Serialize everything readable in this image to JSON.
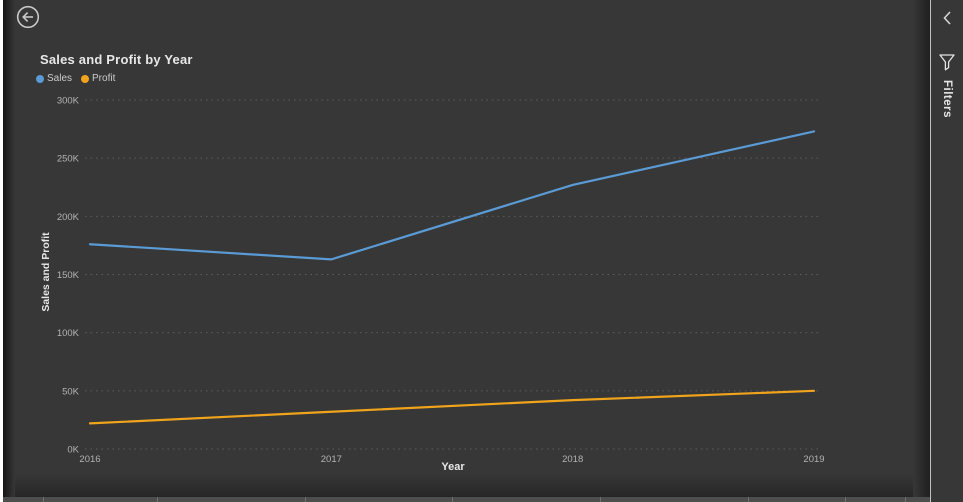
{
  "header": {
    "back_button_icon": "arrow-left-circle"
  },
  "filters_panel": {
    "title": "Filters",
    "collapse_icon": "chevron-left",
    "filter_icon": "funnel"
  },
  "colors": {
    "canvas_background": "#373737",
    "pane_divider": "#c2c2c2",
    "grid_line": "#5e5e5e",
    "tick_text": "#b3b3b3",
    "title_text": "#e8e8e8"
  },
  "chart_data": {
    "type": "line",
    "title": "Sales and Profit by Year",
    "xlabel": "Year",
    "ylabel": "Sales and Profit",
    "categories": [
      "2016",
      "2017",
      "2018",
      "2019"
    ],
    "series": [
      {
        "name": "Sales",
        "color": "#5B9BD5",
        "values": [
          176000,
          163000,
          227000,
          273000
        ]
      },
      {
        "name": "Profit",
        "color": "#F0A41C",
        "values": [
          22000,
          32000,
          42000,
          50000
        ]
      }
    ],
    "ylim": [
      0,
      300000
    ],
    "y_ticks": [
      "0K",
      "50K",
      "100K",
      "150K",
      "200K",
      "250K",
      "300K"
    ],
    "y_tick_values": [
      0,
      50000,
      100000,
      150000,
      200000,
      250000,
      300000
    ],
    "grid": "horizontal-dotted",
    "legend_position": "top-left"
  }
}
